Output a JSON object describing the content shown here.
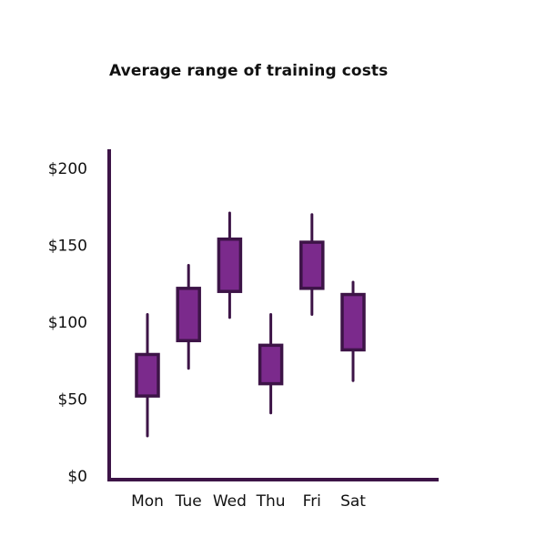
{
  "chart_data": {
    "type": "candlestick",
    "title": "Average range of training costs",
    "xlabel": "",
    "ylabel": "",
    "categories": [
      "Mon",
      "Tue",
      "Wed",
      "Thu",
      "Fri",
      "Sat"
    ],
    "ylim": [
      0,
      210
    ],
    "yticks": [
      0,
      50,
      100,
      150,
      200
    ],
    "ytick_labels": [
      "$0",
      "$50",
      "$100",
      "$150",
      "$200"
    ],
    "series": [
      {
        "low": [
          26,
          70,
          103,
          41,
          105,
          62
        ],
        "open": [
          52,
          88,
          120,
          60,
          122,
          82
        ],
        "close": [
          79,
          122,
          154,
          85,
          152,
          118
        ],
        "high": [
          105,
          137,
          171,
          105,
          170,
          126
        ]
      }
    ],
    "grid": false,
    "legend": "none",
    "colors": {
      "box_fill": "#7b2a8c",
      "stroke": "#3d1447",
      "axis": "#3d1447"
    }
  }
}
